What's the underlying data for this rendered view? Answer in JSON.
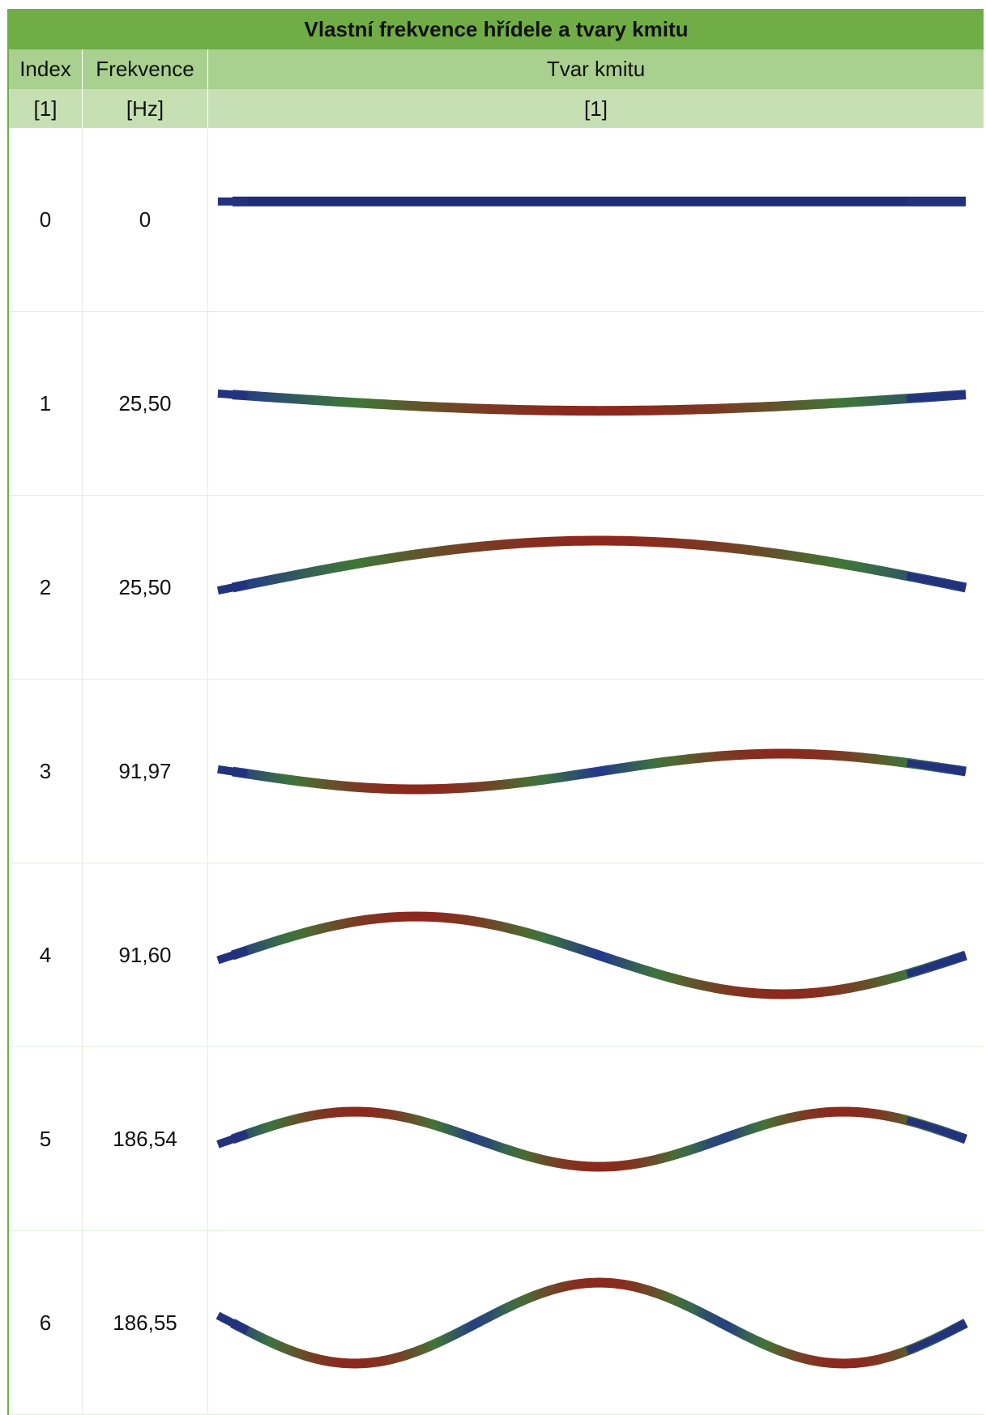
{
  "table": {
    "title": "Vlastní frekvence hřídele a tvary kmitu",
    "header": [
      "Index",
      "Frekvence",
      "Tvar kmitu"
    ],
    "units": [
      "[1]",
      "[Hz]",
      "[1]"
    ],
    "rows": [
      [
        "0",
        "0"
      ],
      [
        "1",
        "25,50"
      ],
      [
        "2",
        "25,50"
      ],
      [
        "3",
        "91,97"
      ],
      [
        "4",
        "91,60"
      ],
      [
        "5",
        "186,54"
      ],
      [
        "6",
        "186,55"
      ]
    ]
  }
}
